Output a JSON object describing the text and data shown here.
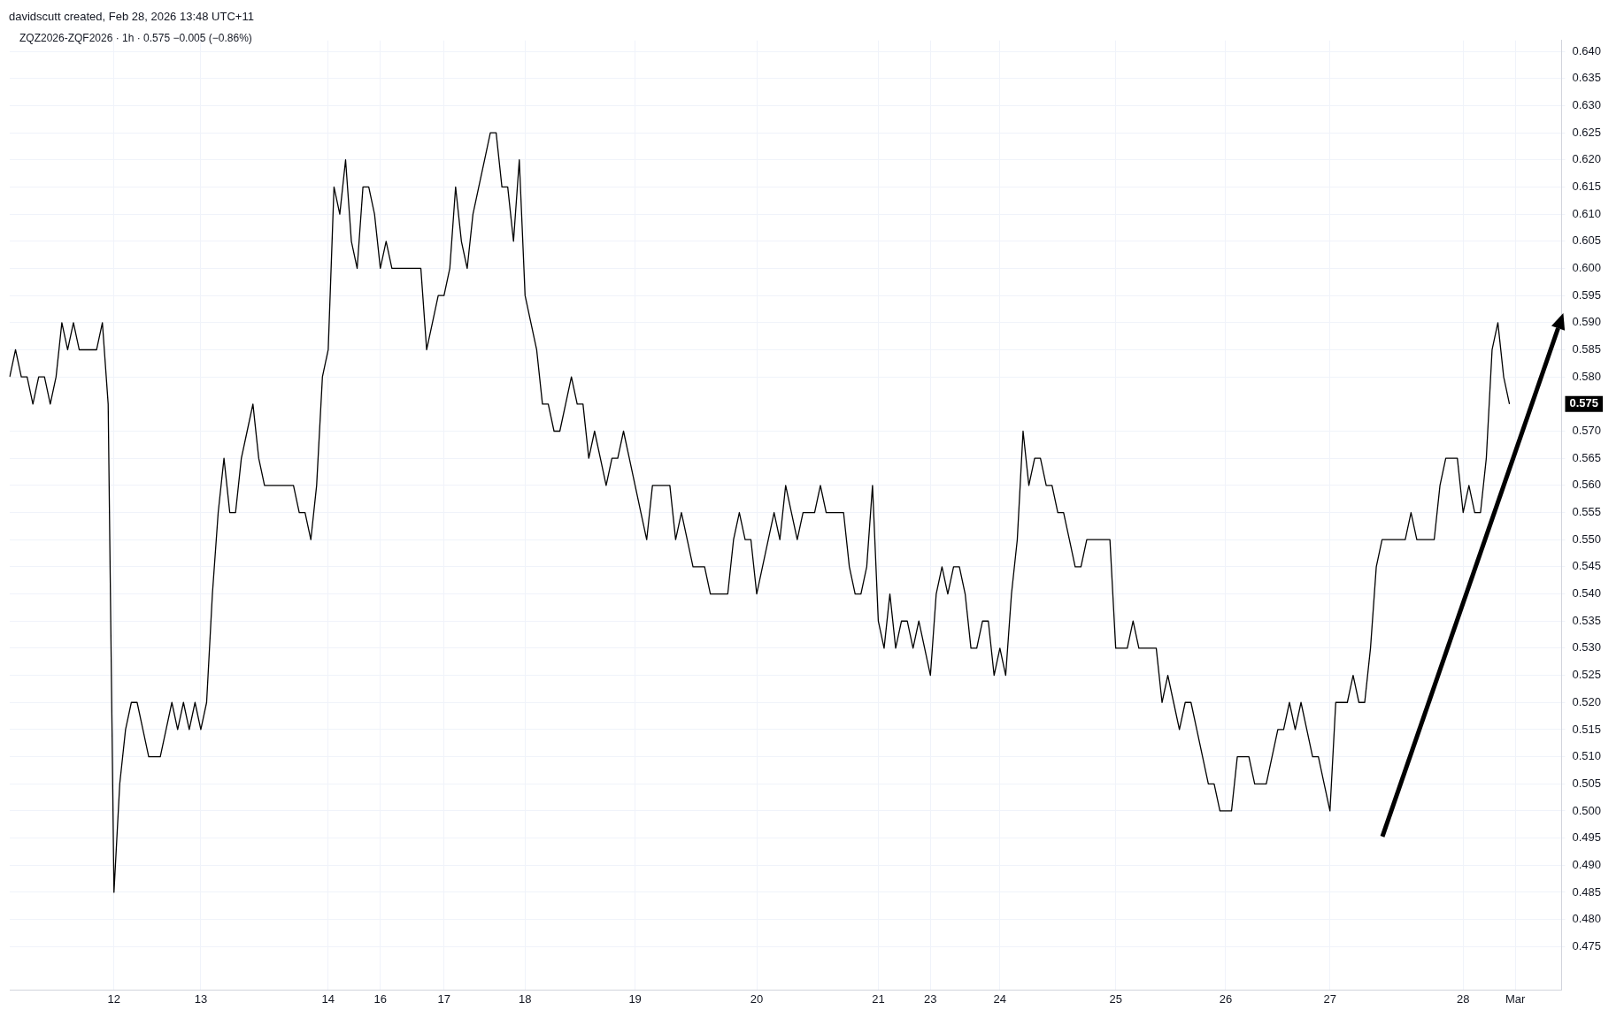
{
  "chart_data": {
    "type": "line",
    "title": "davidscutt created, Feb 28, 2026 13:48 UTC+11",
    "subtitle": "ZQZ2026-ZQF2026 · 1h · 0.575 −0.005 (−0.86%)",
    "categories": [
      null,
      null,
      null,
      null,
      null,
      null,
      null,
      null,
      null,
      null,
      null,
      null,
      null,
      null,
      null,
      null,
      null,
      null,
      "12",
      null,
      null,
      null,
      null,
      null,
      null,
      null,
      null,
      null,
      null,
      null,
      null,
      null,
      null,
      "13",
      null,
      null,
      null,
      null,
      null,
      null,
      null,
      null,
      null,
      null,
      null,
      null,
      null,
      null,
      null,
      null,
      null,
      null,
      null,
      null,
      null,
      "14",
      null,
      null,
      null,
      null,
      null,
      null,
      null,
      null,
      "16",
      null,
      null,
      null,
      null,
      null,
      null,
      null,
      null,
      null,
      null,
      "17",
      null,
      null,
      null,
      null,
      null,
      null,
      null,
      null,
      null,
      null,
      null,
      null,
      null,
      "18",
      null,
      null,
      null,
      null,
      null,
      null,
      null,
      null,
      null,
      null,
      null,
      null,
      null,
      null,
      null,
      null,
      null,
      null,
      "19",
      null,
      null,
      null,
      null,
      null,
      null,
      null,
      null,
      null,
      null,
      null,
      null,
      null,
      null,
      null,
      null,
      null,
      null,
      null,
      null,
      "20",
      null,
      null,
      null,
      null,
      null,
      null,
      null,
      null,
      null,
      null,
      null,
      null,
      null,
      null,
      null,
      null,
      null,
      null,
      null,
      null,
      "21",
      null,
      null,
      null,
      null,
      null,
      null,
      null,
      null,
      "23",
      null,
      null,
      null,
      null,
      null,
      null,
      null,
      null,
      null,
      null,
      null,
      "24",
      null,
      null,
      null,
      null,
      null,
      null,
      null,
      null,
      null,
      null,
      null,
      null,
      null,
      null,
      null,
      null,
      null,
      null,
      null,
      "25",
      null,
      null,
      null,
      null,
      null,
      null,
      null,
      null,
      null,
      null,
      null,
      null,
      null,
      null,
      null,
      null,
      null,
      null,
      "26",
      null,
      null,
      null,
      null,
      null,
      null,
      null,
      null,
      null,
      null,
      null,
      null,
      null,
      null,
      null,
      null,
      null,
      "27",
      null,
      null,
      null,
      null,
      null,
      null,
      null,
      null,
      null,
      null,
      null,
      null,
      null,
      null,
      null,
      null,
      null,
      null,
      null,
      null,
      null,
      null,
      "28",
      null,
      null,
      null,
      null,
      null,
      null,
      null,
      null,
      "Mar",
      null,
      null,
      null,
      null,
      null,
      null,
      null,
      null
    ],
    "series": [
      {
        "color": "#000000",
        "values": [
          0.58,
          0.585,
          0.58,
          0.58,
          0.575,
          0.58,
          0.58,
          0.575,
          0.58,
          0.59,
          0.585,
          0.59,
          0.585,
          0.585,
          0.585,
          0.585,
          0.59,
          0.575,
          0.485,
          0.505,
          0.515,
          0.52,
          0.52,
          0.515,
          0.51,
          0.51,
          0.51,
          0.515,
          0.52,
          0.515,
          0.52,
          0.515,
          0.52,
          0.515,
          0.52,
          0.54,
          0.555,
          0.565,
          0.555,
          0.555,
          0.565,
          0.57,
          0.575,
          0.565,
          0.56,
          0.56,
          0.56,
          0.56,
          0.56,
          0.56,
          0.555,
          0.555,
          0.55,
          0.56,
          0.58,
          0.585,
          0.615,
          0.61,
          0.62,
          0.605,
          0.6,
          0.615,
          0.615,
          0.61,
          0.6,
          0.605,
          0.6,
          0.6,
          0.6,
          0.6,
          0.6,
          0.6,
          0.585,
          0.59,
          0.595,
          0.595,
          0.6,
          0.615,
          0.605,
          0.6,
          0.61,
          0.615,
          0.62,
          0.625,
          0.625,
          0.615,
          0.615,
          0.605,
          0.62,
          0.595,
          0.59,
          0.585,
          0.575,
          0.575,
          0.57,
          0.57,
          0.575,
          0.58,
          0.575,
          0.575,
          0.565,
          0.57,
          0.565,
          0.56,
          0.565,
          0.565,
          0.57,
          0.565,
          0.56,
          0.555,
          0.55,
          0.56,
          0.56,
          0.56,
          0.56,
          0.55,
          0.555,
          0.55,
          0.545,
          0.545,
          0.545,
          0.54,
          0.54,
          0.54,
          0.54,
          0.55,
          0.555,
          0.55,
          0.55,
          0.54,
          0.545,
          0.55,
          0.555,
          0.55,
          0.56,
          0.555,
          0.55,
          0.555,
          0.555,
          0.555,
          0.56,
          0.555,
          0.555,
          0.555,
          0.555,
          0.545,
          0.54,
          0.54,
          0.545,
          0.56,
          0.535,
          0.53,
          0.54,
          0.53,
          0.535,
          0.535,
          0.53,
          0.535,
          0.53,
          0.525,
          0.54,
          0.545,
          0.54,
          0.545,
          0.545,
          0.54,
          0.53,
          0.53,
          0.535,
          0.535,
          0.525,
          0.53,
          0.525,
          0.54,
          0.55,
          0.57,
          0.56,
          0.565,
          0.565,
          0.56,
          0.56,
          0.555,
          0.555,
          0.55,
          0.545,
          0.545,
          0.55,
          0.55,
          0.55,
          0.55,
          0.55,
          0.53,
          0.53,
          0.53,
          0.535,
          0.53,
          0.53,
          0.53,
          0.53,
          0.52,
          0.525,
          0.52,
          0.515,
          0.52,
          0.52,
          0.515,
          0.51,
          0.505,
          0.505,
          0.5,
          0.5,
          0.5,
          0.51,
          0.51,
          0.51,
          0.505,
          0.505,
          0.505,
          0.51,
          0.515,
          0.515,
          0.52,
          0.515,
          0.52,
          0.515,
          0.51,
          0.51,
          0.505,
          0.5,
          0.52,
          0.52,
          0.52,
          0.525,
          0.52,
          0.52,
          0.53,
          0.545,
          0.55,
          0.55,
          0.55,
          0.55,
          0.55,
          0.555,
          0.55,
          0.55,
          0.55,
          0.55,
          0.56,
          0.565,
          0.565,
          0.565,
          0.555,
          0.56,
          0.555,
          0.555,
          0.565,
          0.585,
          0.59,
          0.58,
          0.575,
          null,
          null,
          null,
          null,
          null,
          null,
          null,
          null,
          null
        ]
      }
    ],
    "ylim": [
      0.467,
      0.642
    ],
    "yticks": [
      {
        "value": 0.475,
        "label": "0.475"
      },
      {
        "value": 0.48,
        "label": "0.480"
      },
      {
        "value": 0.485,
        "label": "0.485"
      },
      {
        "value": 0.49,
        "label": "0.490"
      },
      {
        "value": 0.495,
        "label": "0.495"
      },
      {
        "value": 0.5,
        "label": "0.500"
      },
      {
        "value": 0.505,
        "label": "0.505"
      },
      {
        "value": 0.51,
        "label": "0.510"
      },
      {
        "value": 0.515,
        "label": "0.515"
      },
      {
        "value": 0.52,
        "label": "0.520"
      },
      {
        "value": 0.525,
        "label": "0.525"
      },
      {
        "value": 0.53,
        "label": "0.530"
      },
      {
        "value": 0.535,
        "label": "0.535"
      },
      {
        "value": 0.54,
        "label": "0.540"
      },
      {
        "value": 0.545,
        "label": "0.545"
      },
      {
        "value": 0.55,
        "label": "0.550"
      },
      {
        "value": 0.555,
        "label": "0.555"
      },
      {
        "value": 0.56,
        "label": "0.560"
      },
      {
        "value": 0.565,
        "label": "0.565"
      },
      {
        "value": 0.57,
        "label": "0.570"
      },
      {
        "value": 0.58,
        "label": "0.580"
      },
      {
        "value": 0.585,
        "label": "0.585"
      },
      {
        "value": 0.59,
        "label": "0.590"
      },
      {
        "value": 0.595,
        "label": "0.595"
      },
      {
        "value": 0.6,
        "label": "0.600"
      },
      {
        "value": 0.605,
        "label": "0.605"
      },
      {
        "value": 0.61,
        "label": "0.610"
      },
      {
        "value": 0.615,
        "label": "0.615"
      },
      {
        "value": 0.62,
        "label": "0.620"
      },
      {
        "value": 0.625,
        "label": "0.625"
      },
      {
        "value": 0.63,
        "label": "0.630"
      },
      {
        "value": 0.635,
        "label": "0.635"
      },
      {
        "value": 0.64,
        "label": "0.640"
      }
    ],
    "annotations": [
      "0.575"
    ],
    "grid": true,
    "marker": "none",
    "line_style": "solid"
  }
}
